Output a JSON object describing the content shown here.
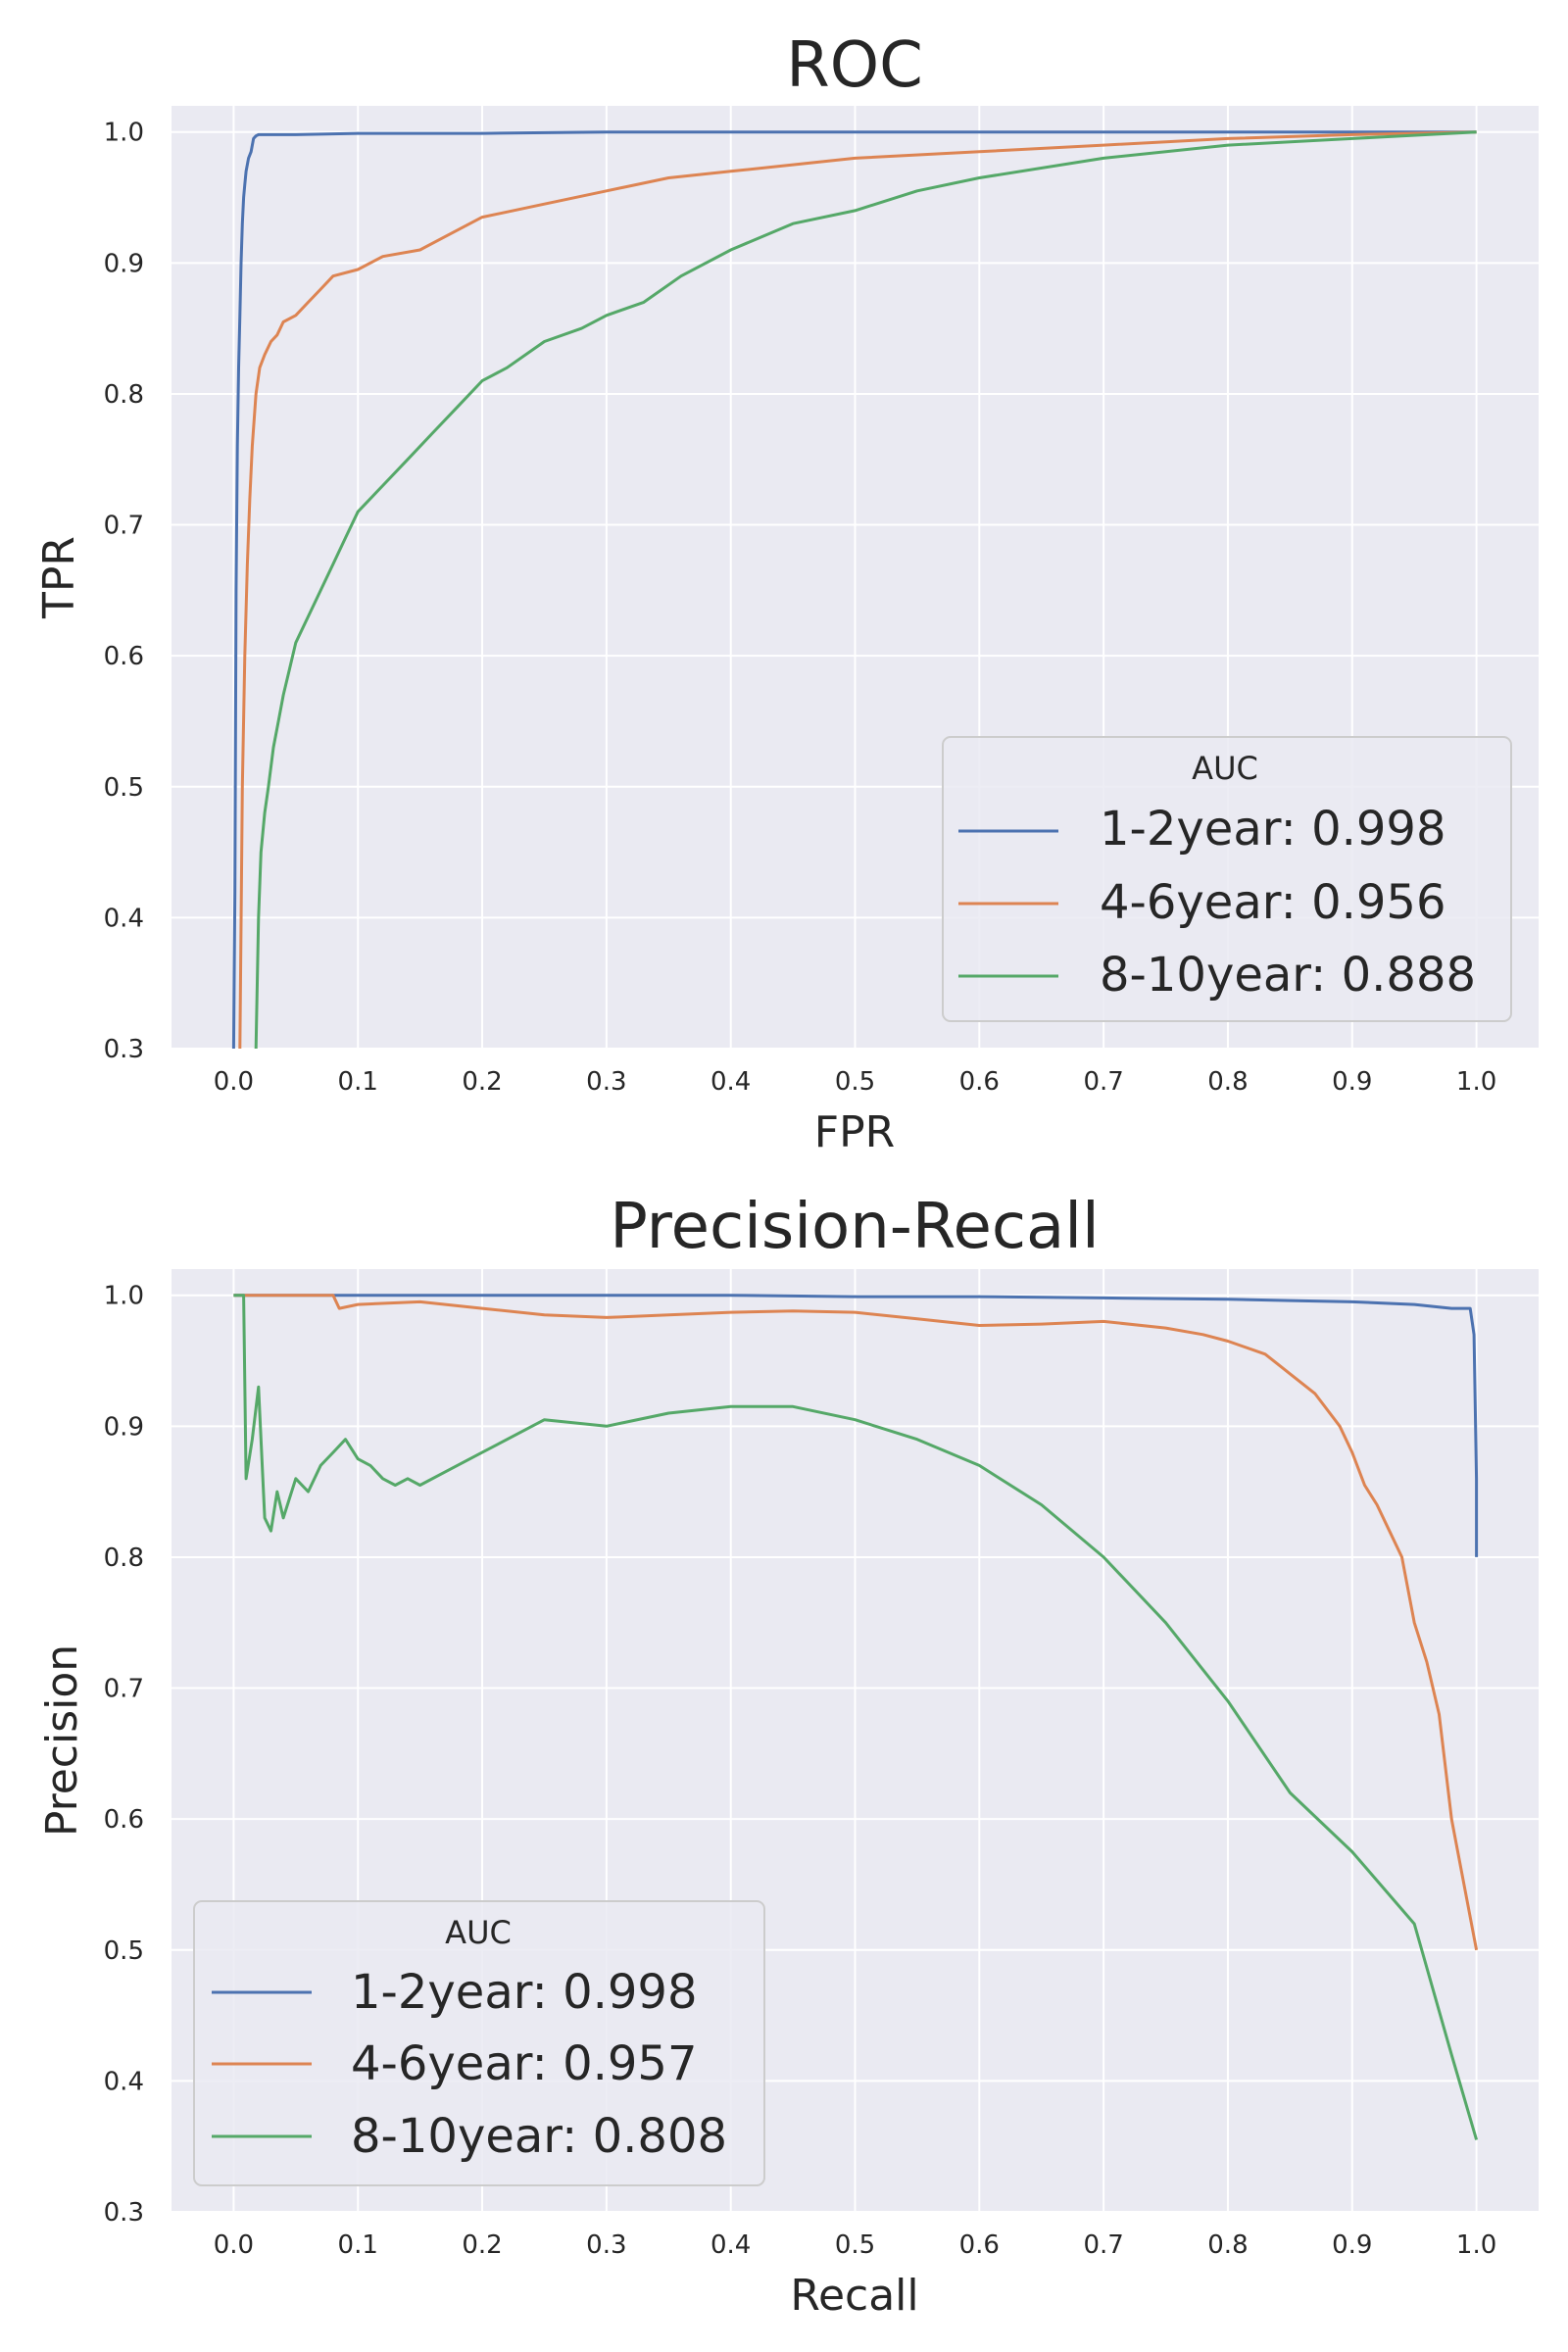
{
  "chart_data": [
    {
      "type": "line",
      "title": "ROC",
      "xlabel": "FPR",
      "ylabel": "TPR",
      "xlim": [
        -0.05,
        1.05
      ],
      "ylim": [
        0.3,
        1.02
      ],
      "xticks": [
        "0.0",
        "0.1",
        "0.2",
        "0.3",
        "0.4",
        "0.5",
        "0.6",
        "0.7",
        "0.8",
        "0.9",
        "1.0"
      ],
      "yticks": [
        "0.3",
        "0.4",
        "0.5",
        "0.6",
        "0.7",
        "0.8",
        "0.9",
        "1.0"
      ],
      "grid": true,
      "legend": {
        "title": "AUC",
        "placement": "lower-right",
        "entries": [
          "1-2year: 0.998",
          "4-6year: 0.956",
          "8-10year: 0.888"
        ]
      },
      "series": [
        {
          "name": "1-2year: 0.998",
          "color": "#4c72b0",
          "x": [
            0.0,
            0.001,
            0.002,
            0.003,
            0.004,
            0.005,
            0.006,
            0.007,
            0.008,
            0.009,
            0.01,
            0.012,
            0.014,
            0.016,
            0.018,
            0.02,
            0.03,
            0.05,
            0.1,
            0.2,
            0.3,
            0.5,
            0.7,
            1.0
          ],
          "y": [
            0.3,
            0.42,
            0.65,
            0.76,
            0.82,
            0.86,
            0.9,
            0.93,
            0.95,
            0.96,
            0.97,
            0.98,
            0.985,
            0.995,
            0.997,
            0.998,
            0.998,
            0.998,
            0.999,
            0.999,
            1.0,
            1.0,
            1.0,
            1.0
          ]
        },
        {
          "name": "4-6year: 0.956",
          "color": "#dd8452",
          "x": [
            0.005,
            0.007,
            0.009,
            0.011,
            0.013,
            0.015,
            0.018,
            0.021,
            0.025,
            0.03,
            0.035,
            0.04,
            0.05,
            0.06,
            0.07,
            0.08,
            0.1,
            0.12,
            0.15,
            0.17,
            0.2,
            0.25,
            0.3,
            0.35,
            0.4,
            0.45,
            0.5,
            0.6,
            0.7,
            0.8,
            0.9,
            1.0
          ],
          "y": [
            0.3,
            0.5,
            0.6,
            0.67,
            0.72,
            0.76,
            0.8,
            0.82,
            0.83,
            0.84,
            0.845,
            0.855,
            0.86,
            0.87,
            0.88,
            0.89,
            0.895,
            0.905,
            0.91,
            0.92,
            0.935,
            0.945,
            0.955,
            0.965,
            0.97,
            0.975,
            0.98,
            0.985,
            0.99,
            0.995,
            0.998,
            1.0
          ]
        },
        {
          "name": "8-10year: 0.888",
          "color": "#55a868",
          "x": [
            0.018,
            0.02,
            0.022,
            0.025,
            0.028,
            0.032,
            0.036,
            0.04,
            0.045,
            0.05,
            0.06,
            0.07,
            0.08,
            0.09,
            0.1,
            0.12,
            0.14,
            0.16,
            0.18,
            0.2,
            0.22,
            0.25,
            0.28,
            0.3,
            0.33,
            0.36,
            0.4,
            0.45,
            0.5,
            0.55,
            0.6,
            0.7,
            0.8,
            0.9,
            1.0
          ],
          "y": [
            0.3,
            0.4,
            0.45,
            0.48,
            0.5,
            0.53,
            0.55,
            0.57,
            0.59,
            0.61,
            0.63,
            0.65,
            0.67,
            0.69,
            0.71,
            0.73,
            0.75,
            0.77,
            0.79,
            0.81,
            0.82,
            0.84,
            0.85,
            0.86,
            0.87,
            0.89,
            0.91,
            0.93,
            0.94,
            0.955,
            0.965,
            0.98,
            0.99,
            0.995,
            1.0
          ]
        }
      ]
    },
    {
      "type": "line",
      "title": "Precision-Recall",
      "xlabel": "Recall",
      "ylabel": "Precision",
      "xlim": [
        -0.05,
        1.05
      ],
      "ylim": [
        0.3,
        1.02
      ],
      "xticks": [
        "0.0",
        "0.1",
        "0.2",
        "0.3",
        "0.4",
        "0.5",
        "0.6",
        "0.7",
        "0.8",
        "0.9",
        "1.0"
      ],
      "yticks": [
        "0.3",
        "0.4",
        "0.5",
        "0.6",
        "0.7",
        "0.8",
        "0.9",
        "1.0"
      ],
      "grid": true,
      "legend": {
        "title": "AUC",
        "placement": "lower-left",
        "entries": [
          "1-2year: 0.998",
          "4-6year: 0.957",
          "8-10year: 0.808"
        ]
      },
      "series": [
        {
          "name": "1-2year: 0.998",
          "color": "#4c72b0",
          "x": [
            0.0,
            0.1,
            0.2,
            0.3,
            0.4,
            0.5,
            0.6,
            0.7,
            0.8,
            0.85,
            0.9,
            0.95,
            0.98,
            0.995,
            0.998,
            1.0,
            1.0
          ],
          "y": [
            1.0,
            1.0,
            1.0,
            1.0,
            1.0,
            0.999,
            0.999,
            0.998,
            0.997,
            0.996,
            0.995,
            0.993,
            0.99,
            0.99,
            0.97,
            0.86,
            0.8
          ]
        },
        {
          "name": "4-6year: 0.957",
          "color": "#dd8452",
          "x": [
            0.0,
            0.08,
            0.085,
            0.1,
            0.15,
            0.2,
            0.25,
            0.3,
            0.35,
            0.4,
            0.45,
            0.5,
            0.55,
            0.6,
            0.65,
            0.7,
            0.75,
            0.78,
            0.8,
            0.83,
            0.85,
            0.87,
            0.89,
            0.9,
            0.91,
            0.92,
            0.93,
            0.94,
            0.95,
            0.96,
            0.97,
            0.98,
            0.99,
            1.0
          ],
          "y": [
            1.0,
            1.0,
            0.99,
            0.993,
            0.995,
            0.99,
            0.985,
            0.983,
            0.985,
            0.987,
            0.988,
            0.987,
            0.982,
            0.977,
            0.978,
            0.98,
            0.975,
            0.97,
            0.965,
            0.955,
            0.94,
            0.925,
            0.9,
            0.88,
            0.855,
            0.84,
            0.82,
            0.8,
            0.75,
            0.72,
            0.68,
            0.6,
            0.55,
            0.5
          ]
        },
        {
          "name": "8-10year: 0.808",
          "color": "#55a868",
          "x": [
            0.0,
            0.008,
            0.01,
            0.015,
            0.02,
            0.025,
            0.03,
            0.035,
            0.04,
            0.05,
            0.06,
            0.07,
            0.08,
            0.09,
            0.1,
            0.11,
            0.12,
            0.13,
            0.14,
            0.15,
            0.17,
            0.2,
            0.25,
            0.3,
            0.35,
            0.4,
            0.45,
            0.5,
            0.55,
            0.6,
            0.65,
            0.7,
            0.75,
            0.8,
            0.85,
            0.9,
            0.95,
            0.98,
            1.0
          ],
          "y": [
            1.0,
            1.0,
            0.86,
            0.89,
            0.93,
            0.83,
            0.82,
            0.85,
            0.83,
            0.86,
            0.85,
            0.87,
            0.88,
            0.89,
            0.875,
            0.87,
            0.86,
            0.855,
            0.86,
            0.855,
            0.865,
            0.88,
            0.905,
            0.9,
            0.91,
            0.915,
            0.915,
            0.905,
            0.89,
            0.87,
            0.84,
            0.8,
            0.75,
            0.69,
            0.62,
            0.575,
            0.52,
            0.42,
            0.355
          ]
        }
      ]
    }
  ]
}
